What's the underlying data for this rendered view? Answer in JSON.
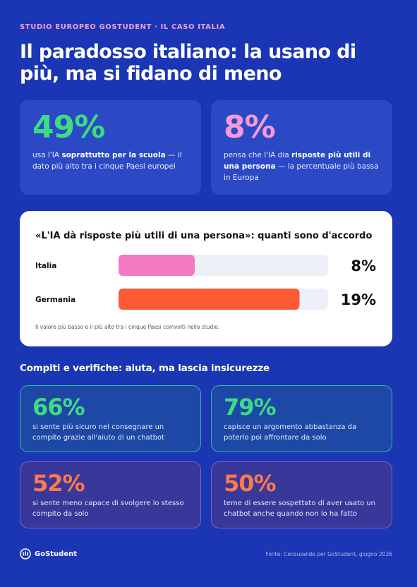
{
  "header": {
    "kicker": "STUDIO EUROPEO GOSTUDENT · IL CASO ITALIA",
    "title": "Il paradosso italiano: la usano di più, ma si fidano di meno"
  },
  "top_stats": [
    {
      "value": "49%",
      "pre": "usa l'IA ",
      "bold": "soprattutto per la scuola",
      "post": " — il dato più alto tra i cinque Paesi europei"
    },
    {
      "value": "8%",
      "pre": "pensa che l'IA dia ",
      "bold": "risposte più utili di una persona",
      "post": " — la percentuale più bassa in Europa"
    }
  ],
  "chart_data": {
    "type": "hbar",
    "title": "«L'IA dà risposte più utili di una persona»: quanti sono d'accordo",
    "categories": [
      "Italia",
      "Germania"
    ],
    "values": [
      8,
      19
    ],
    "value_labels": [
      "8%",
      "19%"
    ],
    "colors": [
      "#f27bc3",
      "#ff5a36"
    ],
    "xlim": [
      0,
      22
    ],
    "note": "Il valore più basso e il più alto tra i cinque Paesi coinvolti nello studio."
  },
  "section": {
    "title": "Compiti e verifiche: aiuta, ma lascia insicurezze",
    "stats": [
      {
        "value": "66%",
        "text": "si sente più sicuro nel consegnare un compito grazie all'aiuto di un chatbot"
      },
      {
        "value": "79%",
        "text": "capisce un argomento abbastanza da poterlo poi affrontare da solo"
      },
      {
        "value": "52%",
        "text": "si sente meno capace di svolgere lo stesso compito da solo"
      },
      {
        "value": "50%",
        "text": "teme di essere sospettato di aver usato un chatbot anche quando non lo ha fatto"
      }
    ]
  },
  "footer": {
    "logo": "GoStudent",
    "source": "Fonte: Censuswide per GoStudent, giugno 2026"
  }
}
